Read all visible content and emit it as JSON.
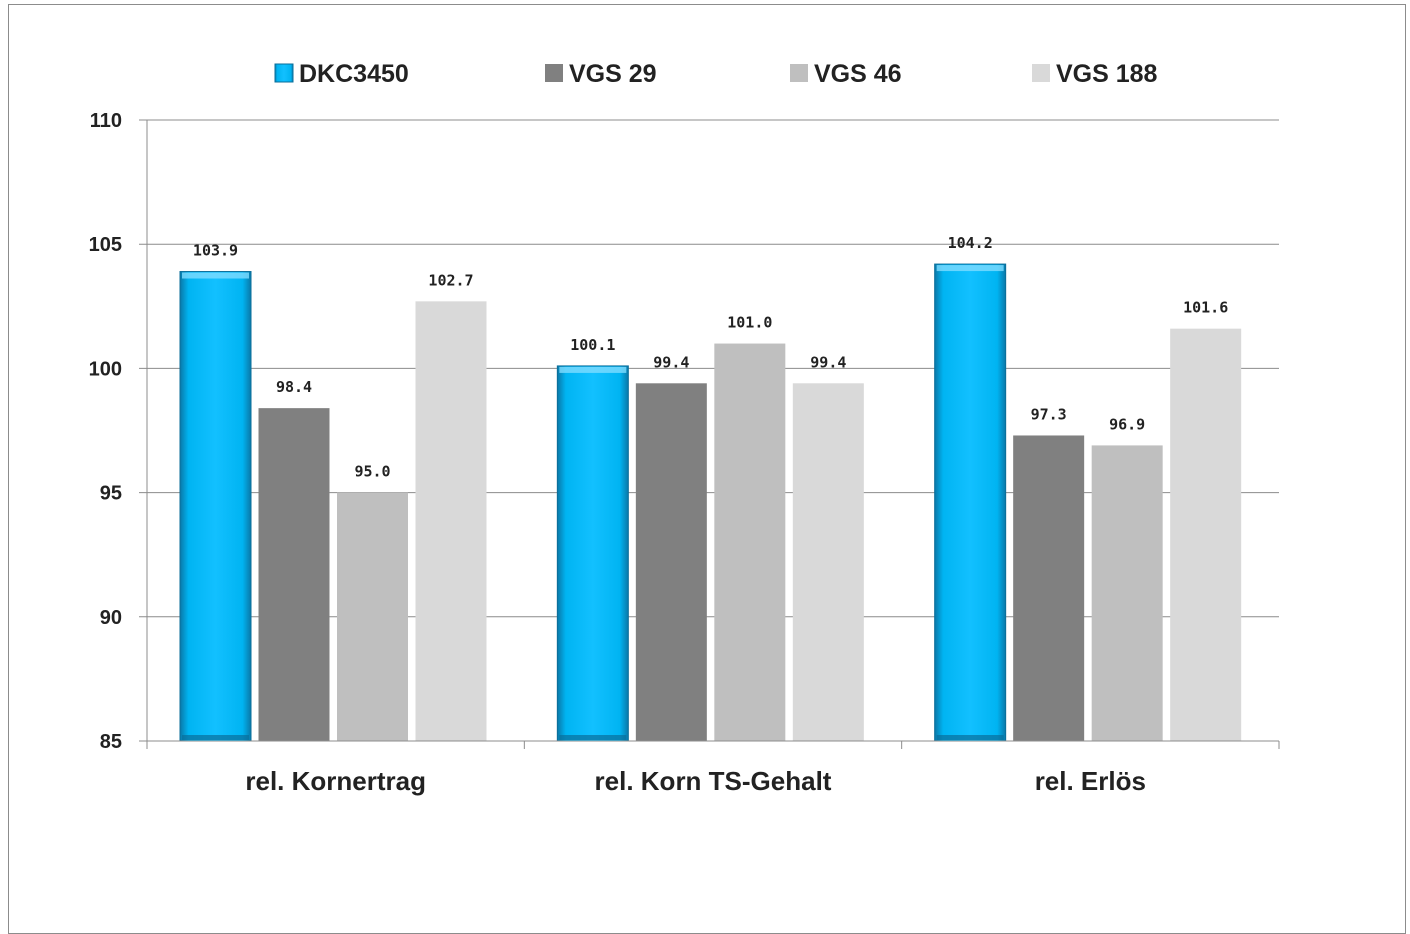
{
  "chart_data": {
    "type": "bar",
    "categories": [
      "rel. Kornertrag",
      "rel. Korn TS-Gehalt",
      "rel. Erlös"
    ],
    "series": [
      {
        "name": "DKC3450",
        "color": "#00b0f0",
        "values": [
          103.9,
          100.1,
          104.2
        ],
        "labels": [
          "103.9",
          "100.1",
          "104.2"
        ]
      },
      {
        "name": "VGS 29",
        "color": "#808080",
        "values": [
          98.4,
          99.4,
          97.3
        ],
        "labels": [
          "98.4",
          "99.4",
          "97.3"
        ]
      },
      {
        "name": "VGS 46",
        "color": "#bfbfbf",
        "values": [
          95.0,
          101.0,
          96.9
        ],
        "labels": [
          "95.0",
          "101.0",
          "96.9"
        ]
      },
      {
        "name": "VGS 188",
        "color": "#d9d9d9",
        "values": [
          102.7,
          99.4,
          101.6
        ],
        "labels": [
          "102.7",
          "99.4",
          "101.6"
        ]
      }
    ],
    "yticks": [
      "85",
      "90",
      "95",
      "100",
      "105",
      "110"
    ],
    "ylim": [
      85,
      110
    ],
    "grid": true,
    "legend_position": "top",
    "title": "",
    "xlabel": "",
    "ylabel": ""
  }
}
